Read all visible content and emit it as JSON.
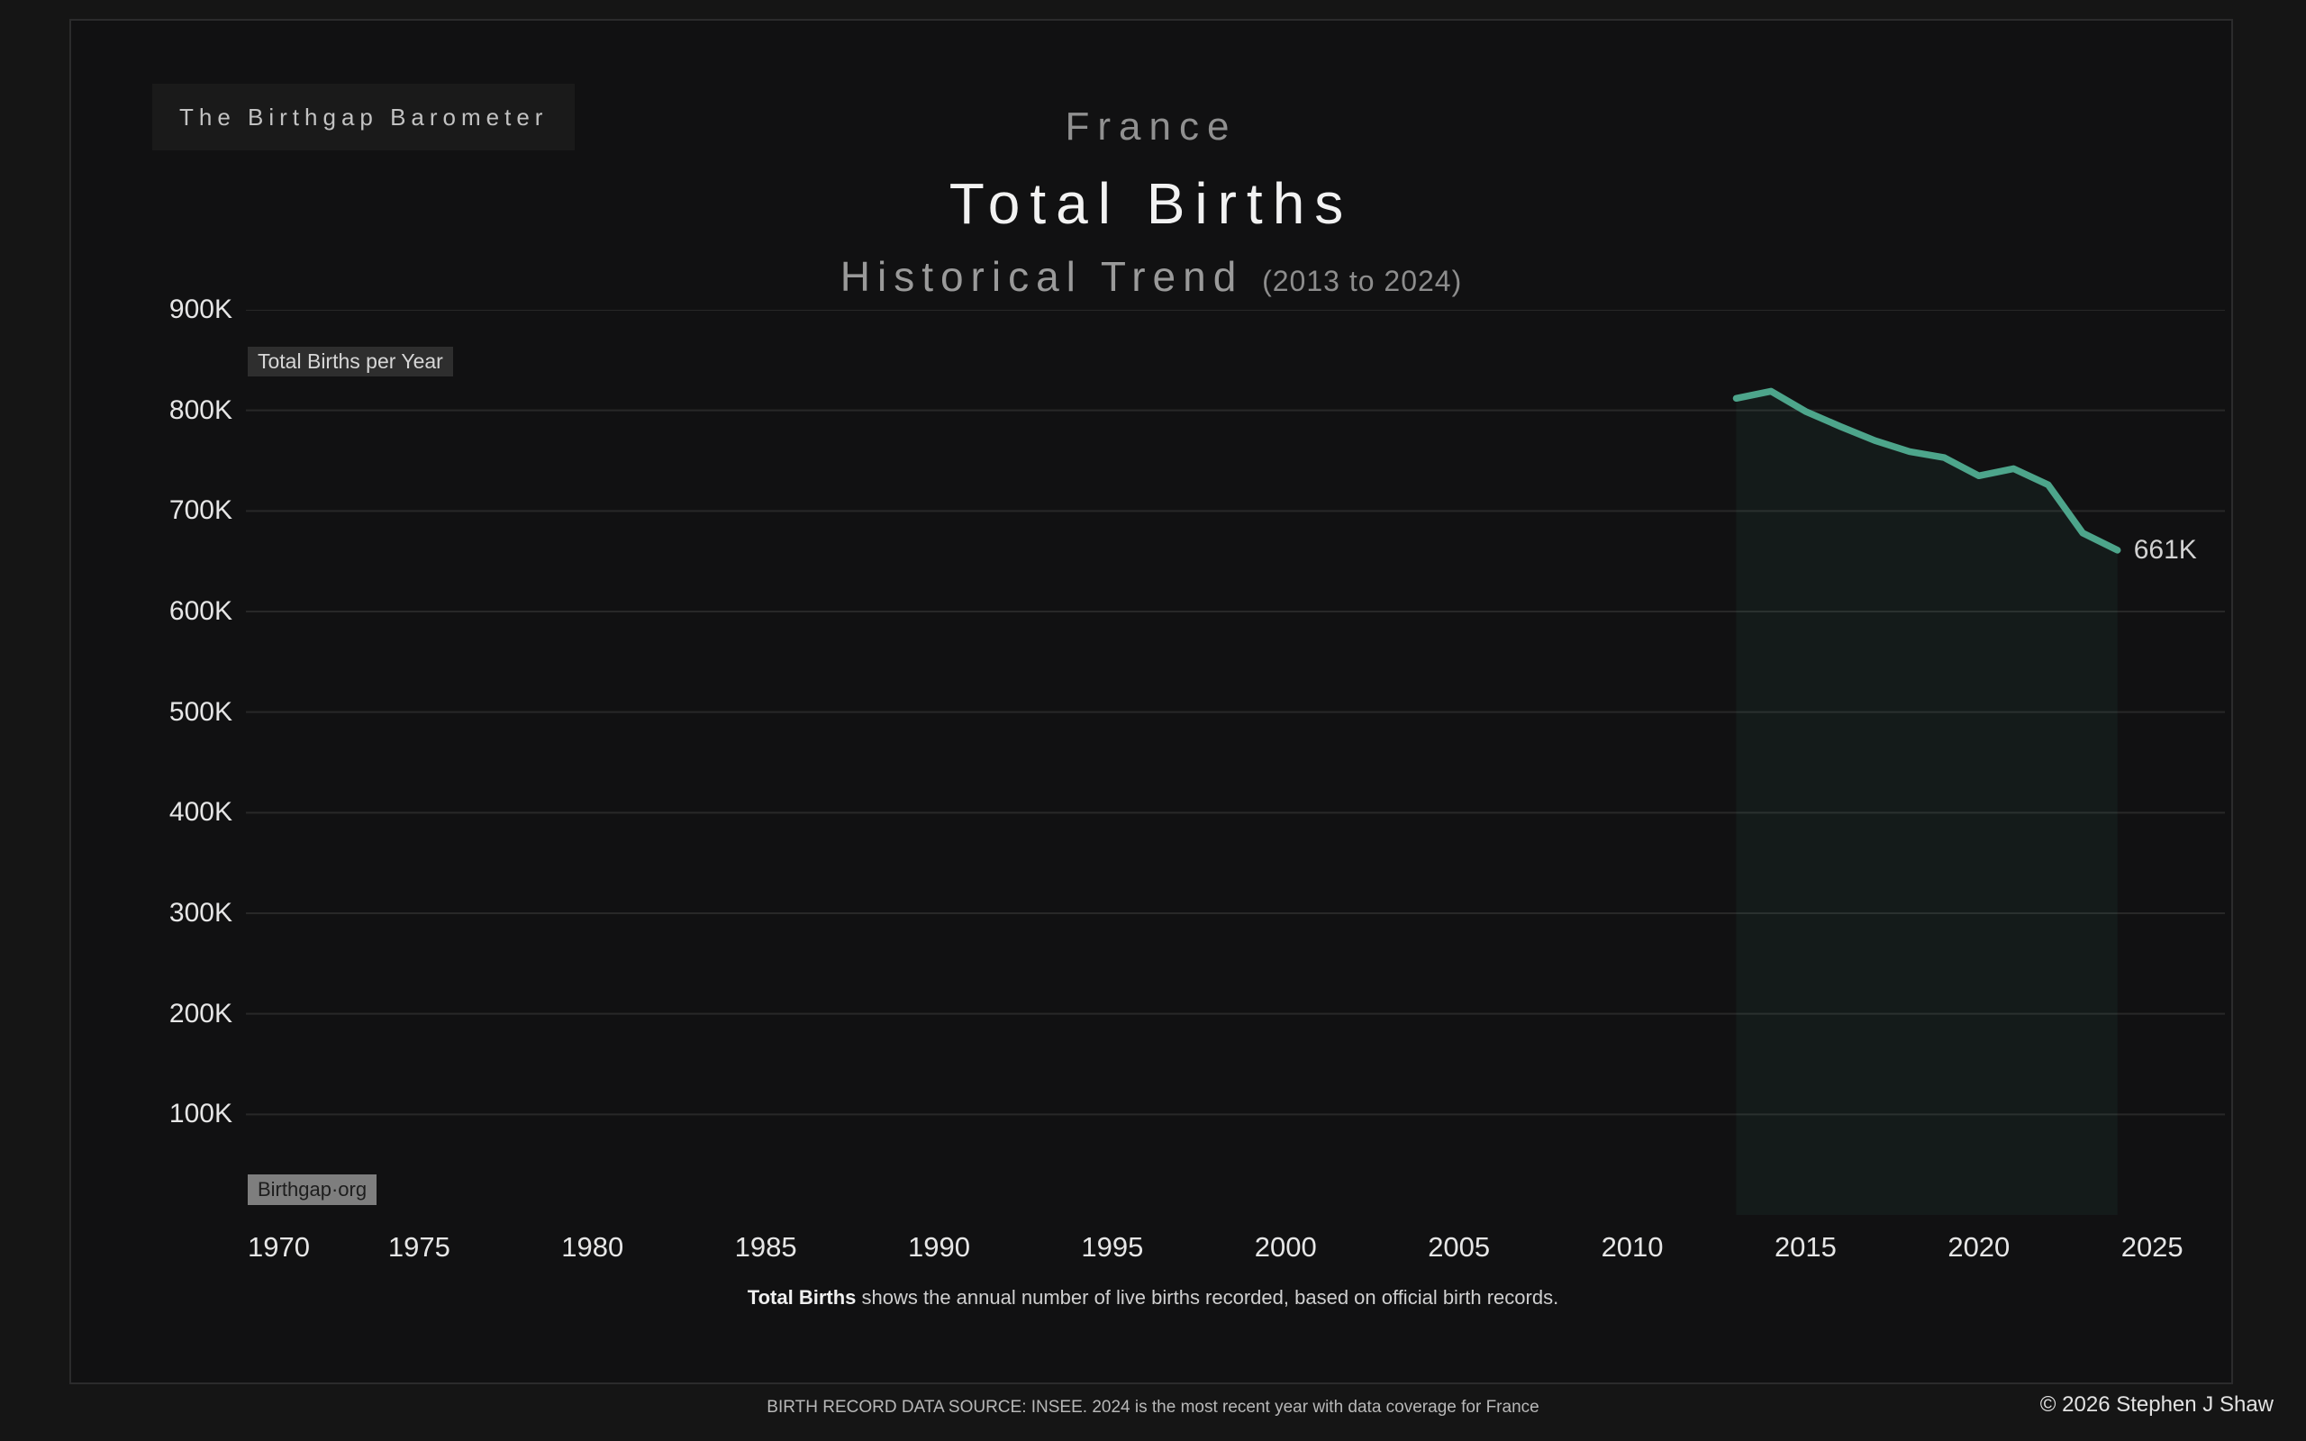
{
  "header": {
    "brand": "The Birthgap Barometer",
    "country": "France",
    "title": "Total Births",
    "subtitle": "Historical Trend",
    "subtitle_range": "(2013 to 2024)"
  },
  "chart": {
    "series_chip": "Total Births per Year",
    "watermark": "Birthgap·org",
    "end_label": "661K",
    "description_bold": "Total Births",
    "description_rest": "shows the annual number of live births recorded, based on official birth records."
  },
  "chart_data": {
    "type": "area",
    "title": "France — Total Births, Historical Trend (2013 to 2024)",
    "series_name": "Total Births per Year",
    "unit": "thousands of births per year",
    "x": [
      2013,
      2014,
      2015,
      2016,
      2017,
      2018,
      2019,
      2020,
      2021,
      2022,
      2023,
      2024
    ],
    "values_thousands": [
      812,
      819,
      799,
      784,
      770,
      759,
      753,
      735,
      742,
      726,
      678,
      661
    ],
    "end_point_label": "661K",
    "x_axis": {
      "ticks": [
        1970,
        1975,
        1980,
        1985,
        1990,
        1995,
        2000,
        2005,
        2010,
        2015,
        2020,
        2025
      ],
      "range": [
        1970,
        2027.1
      ]
    },
    "y_axis": {
      "ticks": [
        100,
        200,
        300,
        400,
        500,
        600,
        700,
        800,
        900
      ],
      "tick_suffix": "K",
      "range": [
        0,
        900
      ]
    },
    "grid": "horizontal",
    "legend": "none",
    "colors": {
      "line": "#4da58b",
      "area_fill": "rgba(77,165,138,0.07)",
      "gridline": "#282828",
      "axis_text": "#e6e6e6"
    }
  },
  "footer": {
    "source": "BIRTH RECORD DATA SOURCE: INSEE. 2024 is the most recent year with data coverage for France",
    "copyright": "© 2026 Stephen J Shaw"
  }
}
